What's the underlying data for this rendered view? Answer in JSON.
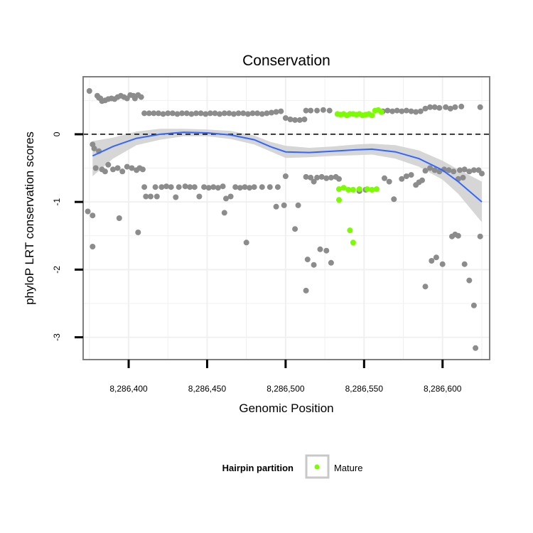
{
  "chart_data": {
    "type": "scatter",
    "title": "Conservation",
    "xlabel": "Genomic Position",
    "ylabel": "phyloP LRT conservation scores",
    "xlim": [
      8286371,
      8286630
    ],
    "ylim": [
      -3.33,
      0.85
    ],
    "x_ticks": [
      8286400,
      8286450,
      8286500,
      8286550,
      8286600
    ],
    "x_tick_labels": [
      "8,286,400",
      "8,286,450",
      "8,286,500",
      "8,286,550",
      "8,286,600"
    ],
    "y_ticks": [
      -3,
      -2,
      -1,
      0
    ],
    "y_tick_labels": [
      "-3",
      "-2",
      "-1",
      "0"
    ],
    "reference_line": {
      "y": 0,
      "style": "dashed"
    },
    "legend": {
      "title": "Hairpin partition",
      "entries": [
        "Mature"
      ],
      "position": "bottom"
    },
    "colors": {
      "other": "#8c8c8c",
      "mature": "#7cfc00",
      "smooth": "#3366ff",
      "band": "#d2d2d2",
      "panel_border": "#7f7f7f",
      "grid": "#f0f0f0"
    },
    "series": [
      {
        "name": "Other",
        "points": [
          [
            8286375,
            0.64
          ],
          [
            8286380,
            0.57
          ],
          [
            8286381,
            0.54
          ],
          [
            8286382,
            0.53
          ],
          [
            8286383,
            0.49
          ],
          [
            8286385,
            0.5
          ],
          [
            8286387,
            0.52
          ],
          [
            8286389,
            0.53
          ],
          [
            8286391,
            0.52
          ],
          [
            8286393,
            0.55
          ],
          [
            8286395,
            0.57
          ],
          [
            8286397,
            0.55
          ],
          [
            8286399,
            0.53
          ],
          [
            8286401,
            0.58
          ],
          [
            8286403,
            0.57
          ],
          [
            8286404,
            0.53
          ],
          [
            8286406,
            0.58
          ],
          [
            8286408,
            0.55
          ],
          [
            8286410,
            0.31
          ],
          [
            8286413,
            0.31
          ],
          [
            8286416,
            0.31
          ],
          [
            8286419,
            0.31
          ],
          [
            8286422,
            0.3
          ],
          [
            8286425,
            0.31
          ],
          [
            8286428,
            0.31
          ],
          [
            8286431,
            0.3
          ],
          [
            8286434,
            0.31
          ],
          [
            8286437,
            0.31
          ],
          [
            8286440,
            0.3
          ],
          [
            8286443,
            0.31
          ],
          [
            8286446,
            0.31
          ],
          [
            8286449,
            0.3
          ],
          [
            8286452,
            0.31
          ],
          [
            8286455,
            0.31
          ],
          [
            8286458,
            0.3
          ],
          [
            8286461,
            0.31
          ],
          [
            8286464,
            0.31
          ],
          [
            8286467,
            0.3
          ],
          [
            8286470,
            0.31
          ],
          [
            8286473,
            0.31
          ],
          [
            8286476,
            0.3
          ],
          [
            8286479,
            0.31
          ],
          [
            8286482,
            0.31
          ],
          [
            8286485,
            0.3
          ],
          [
            8286488,
            0.31
          ],
          [
            8286491,
            0.32
          ],
          [
            8286494,
            0.33
          ],
          [
            8286497,
            0.34
          ],
          [
            8286500,
            0.24
          ],
          [
            8286503,
            0.22
          ],
          [
            8286506,
            0.21
          ],
          [
            8286509,
            0.21
          ],
          [
            8286512,
            0.22
          ],
          [
            8286513,
            0.35
          ],
          [
            8286516,
            0.35
          ],
          [
            8286520,
            0.35
          ],
          [
            8286524,
            0.36
          ],
          [
            8286528,
            0.35
          ],
          [
            8286562,
            0.34
          ],
          [
            8286565,
            0.35
          ],
          [
            8286568,
            0.34
          ],
          [
            8286571,
            0.35
          ],
          [
            8286574,
            0.34
          ],
          [
            8286577,
            0.35
          ],
          [
            8286580,
            0.34
          ],
          [
            8286583,
            0.33
          ],
          [
            8286586,
            0.34
          ],
          [
            8286589,
            0.38
          ],
          [
            8286592,
            0.4
          ],
          [
            8286595,
            0.4
          ],
          [
            8286598,
            0.39
          ],
          [
            8286602,
            0.4
          ],
          [
            8286605,
            0.38
          ],
          [
            8286608,
            0.4
          ],
          [
            8286612,
            0.41
          ],
          [
            8286624,
            0.4
          ],
          [
            8286377,
            -0.15
          ],
          [
            8286378,
            -0.21
          ],
          [
            8286379,
            -0.5
          ],
          [
            8286381,
            -0.25
          ],
          [
            8286383,
            -0.52
          ],
          [
            8286385,
            -0.55
          ],
          [
            8286387,
            -0.45
          ],
          [
            8286390,
            -0.52
          ],
          [
            8286393,
            -0.5
          ],
          [
            8286396,
            -0.55
          ],
          [
            8286399,
            -0.48
          ],
          [
            8286402,
            -0.5
          ],
          [
            8286405,
            -0.53
          ],
          [
            8286407,
            -0.5
          ],
          [
            8286409,
            -0.52
          ],
          [
            8286410,
            -0.78
          ],
          [
            8286411,
            -0.92
          ],
          [
            8286414,
            -0.92
          ],
          [
            8286417,
            -0.78
          ],
          [
            8286418,
            -0.92
          ],
          [
            8286421,
            -0.78
          ],
          [
            8286424,
            -0.77
          ],
          [
            8286427,
            -0.78
          ],
          [
            8286430,
            -0.93
          ],
          [
            8286432,
            -0.78
          ],
          [
            8286436,
            -0.77
          ],
          [
            8286439,
            -0.78
          ],
          [
            8286442,
            -0.78
          ],
          [
            8286445,
            -0.92
          ],
          [
            8286448,
            -0.78
          ],
          [
            8286451,
            -0.79
          ],
          [
            8286454,
            -0.78
          ],
          [
            8286457,
            -0.79
          ],
          [
            8286460,
            -0.77
          ],
          [
            8286462,
            -0.95
          ],
          [
            8286465,
            -0.92
          ],
          [
            8286468,
            -0.78
          ],
          [
            8286471,
            -0.79
          ],
          [
            8286474,
            -0.78
          ],
          [
            8286477,
            -0.79
          ],
          [
            8286480,
            -0.78
          ],
          [
            8286485,
            -0.78
          ],
          [
            8286490,
            -0.78
          ],
          [
            8286495,
            -0.78
          ],
          [
            8286500,
            -0.62
          ],
          [
            8286494,
            -1.07
          ],
          [
            8286499,
            -1.05
          ],
          [
            8286508,
            -1.05
          ],
          [
            8286513,
            -0.63
          ],
          [
            8286516,
            -0.64
          ],
          [
            8286518,
            -0.7
          ],
          [
            8286520,
            -0.64
          ],
          [
            8286523,
            -0.63
          ],
          [
            8286526,
            -0.65
          ],
          [
            8286529,
            -0.64
          ],
          [
            8286532,
            -0.63
          ],
          [
            8286534,
            -0.66
          ],
          [
            8286547,
            -0.84
          ],
          [
            8286551,
            -0.82
          ],
          [
            8286563,
            -0.65
          ],
          [
            8286566,
            -0.7
          ],
          [
            8286569,
            -0.96
          ],
          [
            8286574,
            -0.66
          ],
          [
            8286577,
            -0.62
          ],
          [
            8286580,
            -0.6
          ],
          [
            8286583,
            -0.75
          ],
          [
            8286585,
            -0.71
          ],
          [
            8286587,
            -0.68
          ],
          [
            8286589,
            -0.54
          ],
          [
            8286592,
            -0.5
          ],
          [
            8286595,
            -0.53
          ],
          [
            8286598,
            -0.55
          ],
          [
            8286601,
            -0.52
          ],
          [
            8286604,
            -0.53
          ],
          [
            8286607,
            -0.55
          ],
          [
            8286611,
            -0.53
          ],
          [
            8286614,
            -0.52
          ],
          [
            8286617,
            -0.55
          ],
          [
            8286620,
            -0.53
          ],
          [
            8286623,
            -0.53
          ],
          [
            8286625,
            -0.58
          ],
          [
            8286613,
            -0.64
          ],
          [
            8286610,
            -0.66
          ],
          [
            8286374,
            -1.14
          ],
          [
            8286377,
            -1.2
          ],
          [
            8286377,
            -1.66
          ],
          [
            8286394,
            -1.24
          ],
          [
            8286406,
            -1.45
          ],
          [
            8286461,
            -1.16
          ],
          [
            8286475,
            -1.6
          ],
          [
            8286506,
            -1.4
          ],
          [
            8286514,
            -1.85
          ],
          [
            8286513,
            -2.31
          ],
          [
            8286518,
            -1.93
          ],
          [
            8286522,
            -1.7
          ],
          [
            8286526,
            -1.72
          ],
          [
            8286529,
            -1.9
          ],
          [
            8286589,
            -2.25
          ],
          [
            8286593,
            -1.87
          ],
          [
            8286596,
            -1.82
          ],
          [
            8286600,
            -1.92
          ],
          [
            8286606,
            -1.51
          ],
          [
            8286608,
            -1.48
          ],
          [
            8286610,
            -1.5
          ],
          [
            8286614,
            -1.92
          ],
          [
            8286617,
            -2.16
          ],
          [
            8286620,
            -2.53
          ],
          [
            8286621,
            -3.16
          ],
          [
            8286624,
            -1.51
          ]
        ]
      },
      {
        "name": "Mature",
        "points": [
          [
            8286533,
            0.3
          ],
          [
            8286535,
            0.29
          ],
          [
            8286537,
            0.3
          ],
          [
            8286539,
            0.28
          ],
          [
            8286541,
            0.3
          ],
          [
            8286543,
            0.3
          ],
          [
            8286545,
            0.29
          ],
          [
            8286547,
            0.3
          ],
          [
            8286549,
            0.28
          ],
          [
            8286551,
            0.29
          ],
          [
            8286553,
            0.3
          ],
          [
            8286555,
            0.28
          ],
          [
            8286557,
            0.35
          ],
          [
            8286559,
            0.36
          ],
          [
            8286561,
            0.33
          ],
          [
            8286534,
            -0.81
          ],
          [
            8286537,
            -0.79
          ],
          [
            8286540,
            -0.82
          ],
          [
            8286543,
            -0.82
          ],
          [
            8286547,
            -0.81
          ],
          [
            8286552,
            -0.81
          ],
          [
            8286555,
            -0.82
          ],
          [
            8286558,
            -0.81
          ],
          [
            8286534,
            -0.97
          ],
          [
            8286541,
            -1.42
          ],
          [
            8286543,
            -1.6
          ]
        ]
      }
    ],
    "smooth": {
      "x": [
        8286377,
        8286390,
        8286405,
        8286420,
        8286435,
        8286450,
        8286465,
        8286480,
        8286490,
        8286500,
        8286515,
        8286530,
        8286545,
        8286555,
        8286570,
        8286585,
        8286600,
        8286610,
        8286625
      ],
      "y": [
        -0.32,
        -0.18,
        -0.06,
        0.0,
        0.03,
        0.02,
        -0.01,
        -0.08,
        -0.18,
        -0.26,
        -0.27,
        -0.25,
        -0.23,
        -0.22,
        -0.26,
        -0.36,
        -0.53,
        -0.7,
        -1.0
      ],
      "upper": [
        -0.1,
        -0.05,
        0.04,
        0.08,
        0.08,
        0.07,
        0.05,
        -0.02,
        -0.11,
        -0.17,
        -0.2,
        -0.18,
        -0.15,
        -0.14,
        -0.16,
        -0.24,
        -0.39,
        -0.52,
        -0.7
      ],
      "lower": [
        -0.62,
        -0.36,
        -0.16,
        -0.08,
        -0.03,
        -0.03,
        -0.07,
        -0.15,
        -0.25,
        -0.35,
        -0.34,
        -0.32,
        -0.31,
        -0.3,
        -0.36,
        -0.48,
        -0.67,
        -0.88,
        -1.3
      ]
    }
  }
}
